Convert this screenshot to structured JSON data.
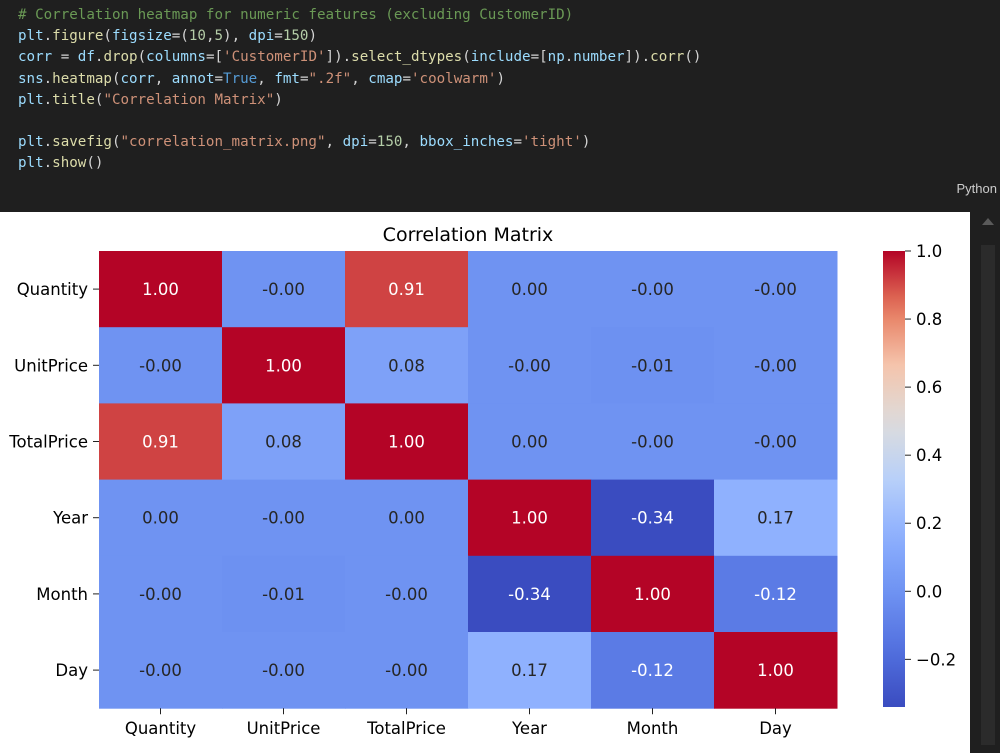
{
  "code": {
    "lines": [
      [
        {
          "t": "# Correlation heatmap for numeric features (excluding CustomerID)",
          "c": "comment"
        }
      ],
      [
        {
          "t": "plt",
          "c": "var"
        },
        {
          "t": ".",
          "c": "plain"
        },
        {
          "t": "figure",
          "c": "fn"
        },
        {
          "t": "(",
          "c": "plain"
        },
        {
          "t": "figsize",
          "c": "var"
        },
        {
          "t": "=(",
          "c": "plain"
        },
        {
          "t": "10",
          "c": "num"
        },
        {
          "t": ",",
          "c": "plain"
        },
        {
          "t": "5",
          "c": "num"
        },
        {
          "t": "), ",
          "c": "plain"
        },
        {
          "t": "dpi",
          "c": "var"
        },
        {
          "t": "=",
          "c": "plain"
        },
        {
          "t": "150",
          "c": "num"
        },
        {
          "t": ")",
          "c": "plain"
        }
      ],
      [
        {
          "t": "corr",
          "c": "var"
        },
        {
          "t": " = ",
          "c": "plain"
        },
        {
          "t": "df",
          "c": "var"
        },
        {
          "t": ".",
          "c": "plain"
        },
        {
          "t": "drop",
          "c": "fn"
        },
        {
          "t": "(",
          "c": "plain"
        },
        {
          "t": "columns",
          "c": "var"
        },
        {
          "t": "=[",
          "c": "plain"
        },
        {
          "t": "'CustomerID'",
          "c": "str"
        },
        {
          "t": "]).",
          "c": "plain"
        },
        {
          "t": "select_dtypes",
          "c": "fn"
        },
        {
          "t": "(",
          "c": "plain"
        },
        {
          "t": "include",
          "c": "var"
        },
        {
          "t": "=[",
          "c": "plain"
        },
        {
          "t": "np",
          "c": "var"
        },
        {
          "t": ".",
          "c": "plain"
        },
        {
          "t": "number",
          "c": "var"
        },
        {
          "t": "]).",
          "c": "plain"
        },
        {
          "t": "corr",
          "c": "fn"
        },
        {
          "t": "()",
          "c": "plain"
        }
      ],
      [
        {
          "t": "sns",
          "c": "var"
        },
        {
          "t": ".",
          "c": "plain"
        },
        {
          "t": "heatmap",
          "c": "fn"
        },
        {
          "t": "(",
          "c": "plain"
        },
        {
          "t": "corr",
          "c": "var"
        },
        {
          "t": ", ",
          "c": "plain"
        },
        {
          "t": "annot",
          "c": "var"
        },
        {
          "t": "=",
          "c": "plain"
        },
        {
          "t": "True",
          "c": "kw"
        },
        {
          "t": ", ",
          "c": "plain"
        },
        {
          "t": "fmt",
          "c": "var"
        },
        {
          "t": "=",
          "c": "plain"
        },
        {
          "t": "\".2f\"",
          "c": "str"
        },
        {
          "t": ", ",
          "c": "plain"
        },
        {
          "t": "cmap",
          "c": "var"
        },
        {
          "t": "=",
          "c": "plain"
        },
        {
          "t": "'coolwarm'",
          "c": "str"
        },
        {
          "t": ")",
          "c": "plain"
        }
      ],
      [
        {
          "t": "plt",
          "c": "var"
        },
        {
          "t": ".",
          "c": "plain"
        },
        {
          "t": "title",
          "c": "fn"
        },
        {
          "t": "(",
          "c": "plain"
        },
        {
          "t": "\"Correlation Matrix\"",
          "c": "str"
        },
        {
          "t": ")",
          "c": "plain"
        }
      ],
      [],
      [
        {
          "t": "plt",
          "c": "var"
        },
        {
          "t": ".",
          "c": "plain"
        },
        {
          "t": "savefig",
          "c": "fn"
        },
        {
          "t": "(",
          "c": "plain"
        },
        {
          "t": "\"correlation_matrix.png\"",
          "c": "str"
        },
        {
          "t": ", ",
          "c": "plain"
        },
        {
          "t": "dpi",
          "c": "var"
        },
        {
          "t": "=",
          "c": "plain"
        },
        {
          "t": "150",
          "c": "num"
        },
        {
          "t": ", ",
          "c": "plain"
        },
        {
          "t": "bbox_inches",
          "c": "var"
        },
        {
          "t": "=",
          "c": "plain"
        },
        {
          "t": "'tight'",
          "c": "str"
        },
        {
          "t": ")",
          "c": "plain"
        }
      ],
      [
        {
          "t": "plt",
          "c": "var"
        },
        {
          "t": ".",
          "c": "plain"
        },
        {
          "t": "show",
          "c": "fn"
        },
        {
          "t": "()",
          "c": "plain"
        }
      ]
    ]
  },
  "cell": {
    "language_label": "Python"
  },
  "colors": {
    "comment": "#6a9955",
    "var": "#9cdcfe",
    "fn": "#dcdcaa",
    "str": "#ce9178",
    "num": "#b5cea8",
    "kw": "#569cd6",
    "plain": "#d4d4d4"
  },
  "chart_data": {
    "type": "heatmap",
    "title": "Correlation Matrix",
    "categories": [
      "Quantity",
      "UnitPrice",
      "TotalPrice",
      "Year",
      "Month",
      "Day"
    ],
    "values": [
      [
        1.0,
        -0.0,
        0.91,
        0.0,
        -0.0,
        -0.0
      ],
      [
        -0.0,
        1.0,
        0.08,
        -0.0,
        -0.01,
        -0.0
      ],
      [
        0.91,
        0.08,
        1.0,
        0.0,
        -0.0,
        -0.0
      ],
      [
        0.0,
        -0.0,
        0.0,
        1.0,
        -0.34,
        0.17
      ],
      [
        -0.0,
        -0.01,
        -0.0,
        -0.34,
        1.0,
        -0.12
      ],
      [
        -0.0,
        -0.0,
        -0.0,
        0.17,
        -0.12,
        1.0
      ]
    ],
    "annotations": [
      [
        "1.00",
        "-0.00",
        "0.91",
        "0.00",
        "-0.00",
        "-0.00"
      ],
      [
        "-0.00",
        "1.00",
        "0.08",
        "-0.00",
        "-0.01",
        "-0.00"
      ],
      [
        "0.91",
        "0.08",
        "1.00",
        "0.00",
        "-0.00",
        "-0.00"
      ],
      [
        "0.00",
        "-0.00",
        "0.00",
        "1.00",
        "-0.34",
        "0.17"
      ],
      [
        "-0.00",
        "-0.01",
        "-0.00",
        "-0.34",
        "1.00",
        "-0.12"
      ],
      [
        "-0.00",
        "-0.00",
        "-0.00",
        "0.17",
        "-0.12",
        "1.00"
      ]
    ],
    "colormap": "coolwarm",
    "vmin": -0.34,
    "vmax": 1.0,
    "colorbar_ticks": [
      1.0,
      0.8,
      0.6,
      0.4,
      0.2,
      0.0,
      -0.2
    ],
    "colorbar_tick_labels": [
      "1.0",
      "0.8",
      "0.6",
      "0.4",
      "0.2",
      "0.0",
      "−0.2"
    ]
  }
}
